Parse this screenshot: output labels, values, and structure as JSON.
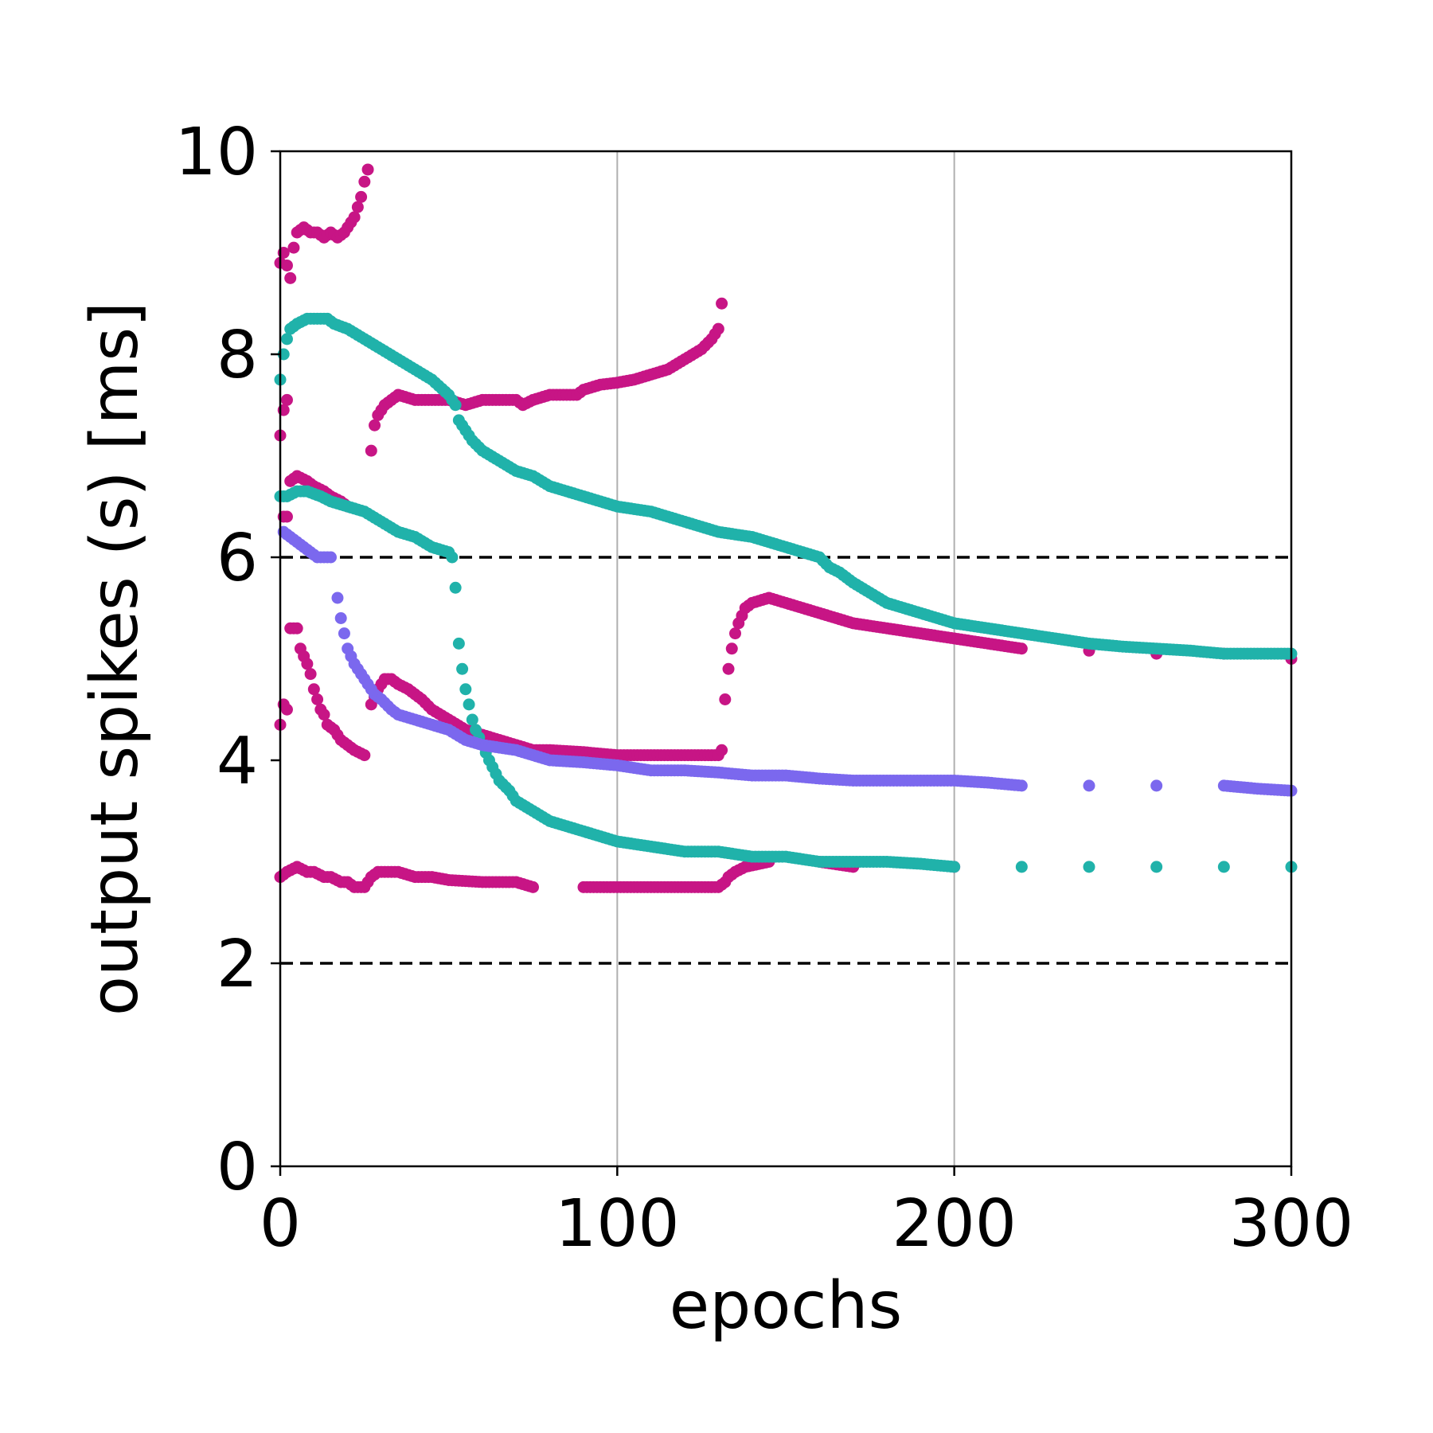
{
  "chart_data": {
    "type": "scatter",
    "xlabel": "epochs",
    "ylabel": "output spikes (s) [ms]",
    "xlim": [
      0,
      300
    ],
    "ylim": [
      0,
      10
    ],
    "xticks": [
      "0",
      "100",
      "200",
      "300"
    ],
    "yticks": [
      "0",
      "2",
      "4",
      "6",
      "8",
      "10"
    ],
    "grid": "vertical",
    "reference_lines": [
      6,
      2
    ],
    "colors": {
      "magenta": "#c71585",
      "teal": "#20b2aa",
      "purple": "#7b68ee"
    },
    "series": [
      {
        "color": "#c71585",
        "points": [
          [
            0,
            8.9
          ],
          [
            1,
            9.0
          ],
          [
            3,
            8.75
          ],
          [
            4,
            9.05
          ],
          [
            5,
            9.2
          ],
          [
            7,
            9.25
          ],
          [
            9,
            9.2
          ],
          [
            11,
            9.2
          ],
          [
            13,
            9.15
          ],
          [
            15,
            9.2
          ],
          [
            17,
            9.15
          ],
          [
            19,
            9.2
          ],
          [
            21,
            9.3
          ],
          [
            22,
            9.35
          ],
          [
            23,
            9.45
          ],
          [
            24,
            9.55
          ],
          [
            25,
            9.7
          ],
          [
            26,
            9.82
          ]
        ]
      },
      {
        "color": "#c71585",
        "points": [
          [
            0,
            7.2
          ],
          [
            1,
            7.45
          ],
          [
            2,
            7.55
          ],
          [
            27,
            7.05
          ],
          [
            28,
            7.3
          ],
          [
            29,
            7.4
          ],
          [
            30,
            7.45
          ],
          [
            31,
            7.5
          ],
          [
            33,
            7.55
          ],
          [
            35,
            7.6
          ],
          [
            40,
            7.55
          ],
          [
            45,
            7.55
          ],
          [
            50,
            7.55
          ],
          [
            55,
            7.5
          ],
          [
            60,
            7.55
          ],
          [
            70,
            7.55
          ],
          [
            72,
            7.5
          ],
          [
            75,
            7.55
          ],
          [
            80,
            7.6
          ],
          [
            88,
            7.6
          ],
          [
            90,
            7.65
          ],
          [
            95,
            7.7
          ],
          [
            100,
            7.72
          ],
          [
            105,
            7.75
          ],
          [
            110,
            7.8
          ],
          [
            115,
            7.85
          ],
          [
            120,
            7.95
          ],
          [
            125,
            8.05
          ],
          [
            128,
            8.15
          ],
          [
            130,
            8.25
          ],
          [
            131,
            8.5
          ]
        ]
      },
      {
        "color": "#c71585",
        "points": [
          [
            1,
            6.4
          ],
          [
            2,
            6.4
          ],
          [
            3,
            6.75
          ],
          [
            5,
            6.8
          ],
          [
            8,
            6.75
          ],
          [
            10,
            6.7
          ],
          [
            13,
            6.65
          ],
          [
            15,
            6.6
          ],
          [
            18,
            6.55
          ],
          [
            20,
            6.5
          ]
        ]
      },
      {
        "color": "#c71585",
        "points": [
          [
            0,
            4.35
          ],
          [
            1,
            4.55
          ],
          [
            2,
            4.5
          ],
          [
            3,
            5.3
          ],
          [
            5,
            5.3
          ],
          [
            6,
            5.1
          ],
          [
            8,
            4.95
          ],
          [
            9,
            4.85
          ],
          [
            10,
            4.7
          ],
          [
            11,
            4.6
          ],
          [
            12,
            4.5
          ],
          [
            13,
            4.45
          ],
          [
            14,
            4.35
          ],
          [
            16,
            4.3
          ],
          [
            17,
            4.25
          ],
          [
            18,
            4.2
          ],
          [
            20,
            4.15
          ],
          [
            22,
            4.1
          ],
          [
            25,
            4.05
          ]
        ]
      },
      {
        "color": "#c71585",
        "points": [
          [
            27,
            4.55
          ],
          [
            29,
            4.7
          ],
          [
            31,
            4.8
          ],
          [
            33,
            4.8
          ],
          [
            35,
            4.75
          ],
          [
            38,
            4.7
          ],
          [
            40,
            4.65
          ],
          [
            42,
            4.6
          ],
          [
            45,
            4.5
          ],
          [
            50,
            4.4
          ],
          [
            55,
            4.3
          ],
          [
            60,
            4.25
          ],
          [
            65,
            4.2
          ],
          [
            70,
            4.15
          ],
          [
            75,
            4.1
          ],
          [
            80,
            4.1
          ],
          [
            90,
            4.08
          ],
          [
            100,
            4.05
          ],
          [
            110,
            4.05
          ],
          [
            120,
            4.05
          ],
          [
            130,
            4.05
          ],
          [
            131,
            4.1
          ]
        ]
      },
      {
        "color": "#c71585",
        "points": [
          [
            132,
            4.6
          ],
          [
            133,
            4.9
          ],
          [
            134,
            5.1
          ],
          [
            135,
            5.25
          ],
          [
            136,
            5.35
          ],
          [
            138,
            5.5
          ],
          [
            140,
            5.55
          ],
          [
            145,
            5.6
          ],
          [
            150,
            5.55
          ],
          [
            155,
            5.5
          ],
          [
            160,
            5.45
          ],
          [
            165,
            5.4
          ],
          [
            170,
            5.35
          ],
          [
            180,
            5.3
          ],
          [
            190,
            5.25
          ],
          [
            200,
            5.2
          ],
          [
            210,
            5.15
          ],
          [
            220,
            5.1
          ],
          [
            240,
            5.08
          ],
          [
            260,
            5.05
          ],
          [
            280,
            5.05
          ],
          [
            300,
            5.0
          ]
        ]
      },
      {
        "color": "#c71585",
        "points": [
          [
            0,
            2.85
          ],
          [
            2,
            2.9
          ],
          [
            5,
            2.95
          ],
          [
            8,
            2.9
          ],
          [
            10,
            2.9
          ],
          [
            13,
            2.85
          ],
          [
            15,
            2.85
          ],
          [
            18,
            2.8
          ],
          [
            20,
            2.8
          ],
          [
            22,
            2.75
          ],
          [
            25,
            2.75
          ],
          [
            27,
            2.85
          ],
          [
            29,
            2.9
          ],
          [
            35,
            2.9
          ],
          [
            40,
            2.85
          ],
          [
            45,
            2.85
          ],
          [
            50,
            2.82
          ],
          [
            60,
            2.8
          ],
          [
            70,
            2.8
          ],
          [
            75,
            2.75
          ],
          [
            90,
            2.75
          ],
          [
            100,
            2.75
          ],
          [
            110,
            2.75
          ],
          [
            120,
            2.75
          ],
          [
            130,
            2.75
          ],
          [
            132,
            2.8
          ],
          [
            133,
            2.85
          ],
          [
            135,
            2.9
          ],
          [
            138,
            2.95
          ],
          [
            145,
            3.0
          ],
          [
            160,
            3.0
          ],
          [
            170,
            2.95
          ],
          [
            200,
            2.95
          ]
        ]
      },
      {
        "color": "#20b2aa",
        "points": [
          [
            0,
            7.75
          ],
          [
            1,
            8.0
          ],
          [
            2,
            8.15
          ],
          [
            3,
            8.25
          ],
          [
            5,
            8.3
          ],
          [
            8,
            8.35
          ],
          [
            10,
            8.35
          ],
          [
            14,
            8.35
          ],
          [
            16,
            8.3
          ],
          [
            20,
            8.25
          ],
          [
            25,
            8.15
          ],
          [
            30,
            8.05
          ],
          [
            35,
            7.95
          ],
          [
            40,
            7.85
          ],
          [
            45,
            7.75
          ],
          [
            50,
            7.6
          ],
          [
            52,
            7.5
          ],
          [
            53,
            7.35
          ],
          [
            55,
            7.25
          ],
          [
            57,
            7.15
          ],
          [
            60,
            7.05
          ],
          [
            65,
            6.95
          ],
          [
            70,
            6.85
          ],
          [
            75,
            6.8
          ],
          [
            80,
            6.7
          ],
          [
            85,
            6.65
          ],
          [
            90,
            6.6
          ],
          [
            95,
            6.55
          ],
          [
            100,
            6.5
          ],
          [
            110,
            6.45
          ],
          [
            120,
            6.35
          ],
          [
            130,
            6.25
          ],
          [
            140,
            6.2
          ],
          [
            145,
            6.15
          ],
          [
            150,
            6.1
          ],
          [
            155,
            6.05
          ],
          [
            160,
            6.0
          ],
          [
            163,
            5.9
          ],
          [
            166,
            5.85
          ],
          [
            170,
            5.75
          ],
          [
            175,
            5.65
          ],
          [
            180,
            5.55
          ],
          [
            185,
            5.5
          ],
          [
            190,
            5.45
          ],
          [
            195,
            5.4
          ],
          [
            200,
            5.35
          ],
          [
            210,
            5.3
          ],
          [
            220,
            5.25
          ],
          [
            230,
            5.2
          ],
          [
            240,
            5.15
          ],
          [
            250,
            5.12
          ],
          [
            260,
            5.1
          ],
          [
            270,
            5.08
          ],
          [
            280,
            5.05
          ],
          [
            290,
            5.05
          ],
          [
            300,
            5.05
          ]
        ]
      },
      {
        "color": "#20b2aa",
        "points": [
          [
            0,
            6.6
          ],
          [
            2,
            6.6
          ],
          [
            5,
            6.65
          ],
          [
            8,
            6.65
          ],
          [
            12,
            6.6
          ],
          [
            15,
            6.55
          ],
          [
            20,
            6.5
          ],
          [
            25,
            6.45
          ],
          [
            30,
            6.35
          ],
          [
            35,
            6.25
          ],
          [
            40,
            6.2
          ],
          [
            45,
            6.1
          ],
          [
            50,
            6.05
          ],
          [
            51,
            6.0
          ],
          [
            52,
            5.7
          ],
          [
            53,
            5.15
          ],
          [
            54,
            4.9
          ],
          [
            55,
            4.7
          ],
          [
            56,
            4.55
          ],
          [
            57,
            4.4
          ],
          [
            58,
            4.3
          ],
          [
            60,
            4.15
          ],
          [
            62,
            4.0
          ],
          [
            65,
            3.8
          ],
          [
            68,
            3.7
          ],
          [
            70,
            3.6
          ],
          [
            75,
            3.5
          ],
          [
            80,
            3.4
          ],
          [
            85,
            3.35
          ],
          [
            90,
            3.3
          ],
          [
            95,
            3.25
          ],
          [
            100,
            3.2
          ],
          [
            110,
            3.15
          ],
          [
            120,
            3.1
          ],
          [
            130,
            3.1
          ],
          [
            140,
            3.05
          ],
          [
            150,
            3.05
          ],
          [
            160,
            3.0
          ],
          [
            170,
            3.0
          ],
          [
            180,
            3.0
          ],
          [
            190,
            2.98
          ],
          [
            200,
            2.95
          ],
          [
            220,
            2.95
          ],
          [
            240,
            2.95
          ],
          [
            260,
            2.95
          ],
          [
            280,
            2.95
          ],
          [
            300,
            2.95
          ]
        ]
      },
      {
        "color": "#7b68ee",
        "points": [
          [
            1,
            6.25
          ],
          [
            3,
            6.2
          ],
          [
            5,
            6.15
          ],
          [
            7,
            6.1
          ],
          [
            9,
            6.05
          ],
          [
            11,
            6.0
          ],
          [
            13,
            6.0
          ],
          [
            15,
            6.0
          ],
          [
            17,
            5.6
          ],
          [
            18,
            5.4
          ],
          [
            19,
            5.25
          ],
          [
            20,
            5.1
          ],
          [
            22,
            4.95
          ],
          [
            24,
            4.85
          ],
          [
            26,
            4.75
          ],
          [
            28,
            4.65
          ],
          [
            30,
            4.6
          ],
          [
            33,
            4.5
          ],
          [
            35,
            4.45
          ],
          [
            40,
            4.4
          ],
          [
            45,
            4.35
          ],
          [
            50,
            4.3
          ],
          [
            55,
            4.2
          ],
          [
            60,
            4.15
          ],
          [
            70,
            4.1
          ],
          [
            80,
            4.0
          ],
          [
            90,
            3.98
          ],
          [
            100,
            3.95
          ],
          [
            110,
            3.9
          ],
          [
            120,
            3.9
          ],
          [
            130,
            3.88
          ],
          [
            140,
            3.85
          ],
          [
            150,
            3.85
          ],
          [
            160,
            3.82
          ],
          [
            170,
            3.8
          ],
          [
            180,
            3.8
          ],
          [
            190,
            3.8
          ],
          [
            200,
            3.8
          ],
          [
            210,
            3.78
          ],
          [
            220,
            3.75
          ],
          [
            240,
            3.75
          ],
          [
            260,
            3.75
          ],
          [
            280,
            3.75
          ],
          [
            290,
            3.72
          ],
          [
            300,
            3.7
          ]
        ]
      }
    ]
  }
}
